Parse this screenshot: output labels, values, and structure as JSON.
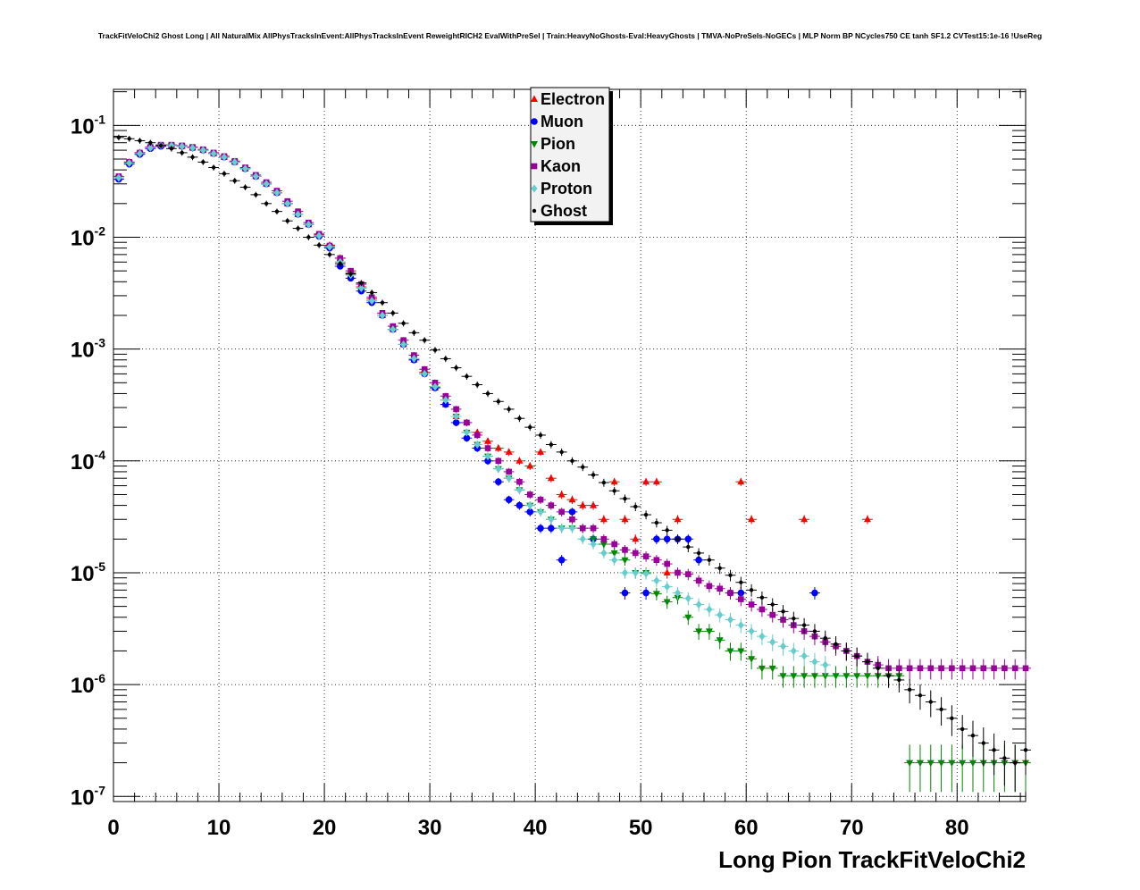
{
  "chart_data": {
    "type": "scatter",
    "title": "TrackFitVeloChi2 Ghost Long | All NaturalMix AllPhysTracksInEvent:AllPhysTracksInEvent ReweightRICH2 EvalWithPreSel | Train:HeavyNoGhosts-Eval:HeavyGhosts | TMVA-NoPreSels-NoGECs | MLP Norm BP NCycles750 CE tanh SF1.2 CVTest15:1e-16 !UseReg",
    "xlabel": "Long Pion TrackFitVeloChi2",
    "ylabel": "",
    "xlim": [
      0,
      86.5
    ],
    "ylim": [
      9e-08,
      0.21
    ],
    "yscale": "log",
    "grid": true,
    "legend_position": "top-center",
    "x_ticks": [
      0,
      10,
      20,
      30,
      40,
      50,
      60,
      70,
      80
    ],
    "x_tick_labels": [
      "0",
      "10",
      "20",
      "30",
      "40",
      "50",
      "60",
      "70",
      "80"
    ],
    "y_ticks": [
      1e-07,
      1e-06,
      1e-05,
      0.0001,
      0.001,
      0.01,
      0.1
    ],
    "y_tick_labels": [
      {
        "base": "10",
        "exp": "-7"
      },
      {
        "base": "10",
        "exp": "-6"
      },
      {
        "base": "10",
        "exp": "-5"
      },
      {
        "base": "10",
        "exp": "-4"
      },
      {
        "base": "10",
        "exp": "-3"
      },
      {
        "base": "10",
        "exp": "-2"
      },
      {
        "base": "10",
        "exp": "-1"
      }
    ],
    "bin_width": 1,
    "series": [
      {
        "name": "Electron",
        "color": "#ff0000",
        "marker": "triangle-up",
        "values": [
          0.034,
          0.047,
          0.057,
          0.063,
          0.066,
          0.066,
          0.065,
          0.063,
          0.06,
          0.056,
          0.052,
          0.047,
          0.041,
          0.035,
          0.03,
          0.025,
          0.02,
          0.016,
          0.013,
          0.0105,
          0.0085,
          0.0065,
          0.0048,
          0.0036,
          0.0028,
          0.002,
          0.0015,
          0.0011,
          0.0008,
          0.00062,
          0.00045,
          0.00032,
          0.00025,
          0.00022,
          0.00018,
          0.00015,
          0.00013,
          0.00012,
          0.0001,
          9e-05,
          0.00012,
          7e-05,
          5e-05,
          4.5e-05,
          4e-05,
          4e-05,
          3e-05,
          6.5e-05,
          3e-05,
          2e-05,
          6.5e-05,
          6.5e-05,
          1e-05,
          3e-05,
          null,
          null,
          null,
          null,
          null,
          6.5e-05,
          3e-05,
          null,
          null,
          null,
          null,
          3e-05,
          null,
          null,
          null,
          null,
          null,
          3e-05
        ]
      },
      {
        "name": "Muon",
        "color": "#0000ff",
        "marker": "circle",
        "values": [
          0.033,
          0.045,
          0.055,
          0.062,
          0.065,
          0.066,
          0.065,
          0.063,
          0.06,
          0.056,
          0.052,
          0.047,
          0.041,
          0.035,
          0.03,
          0.025,
          0.02,
          0.016,
          0.013,
          0.0102,
          0.008,
          0.0055,
          0.0043,
          0.0033,
          0.0026,
          0.002,
          0.0015,
          0.0011,
          0.0008,
          0.0006,
          0.00045,
          0.00032,
          0.00022,
          0.00016,
          0.00013,
          0.0001,
          6.5e-05,
          4.5e-05,
          4e-05,
          3.5e-05,
          2.5e-05,
          2.5e-05,
          1.3e-05,
          3.5e-05,
          null,
          2e-05,
          null,
          null,
          6.6e-06,
          null,
          6.6e-06,
          2e-05,
          2e-05,
          2e-05,
          2e-05,
          1.3e-05,
          null,
          null,
          6.6e-06,
          6.6e-06,
          null,
          null,
          null,
          null,
          null,
          null,
          6.6e-06
        ]
      },
      {
        "name": "Pion",
        "color": "#008800",
        "marker": "triangle-down",
        "values": [
          0.034,
          0.046,
          0.056,
          0.063,
          0.066,
          0.066,
          0.065,
          0.063,
          0.06,
          0.056,
          0.052,
          0.047,
          0.041,
          0.035,
          0.03,
          0.025,
          0.02,
          0.016,
          0.013,
          0.0103,
          0.0082,
          0.006,
          0.0046,
          0.0035,
          0.0027,
          0.002,
          0.0015,
          0.0011,
          0.00082,
          0.0006,
          0.00046,
          0.00035,
          0.00025,
          0.00018,
          0.00014,
          0.00011,
          8.5e-05,
          7e-05,
          5.5e-05,
          4e-05,
          3.5e-05,
          3e-05,
          2.5e-05,
          2.5e-05,
          2.5e-05,
          2e-05,
          1.8e-05,
          1.5e-05,
          1.3e-05,
          1e-05,
          1e-05,
          6.5e-06,
          5.5e-06,
          6e-06,
          4e-06,
          3e-06,
          3e-06,
          2.5e-06,
          2e-06,
          2e-06,
          1.7e-06,
          1.4e-06,
          1.4e-06,
          1.2e-06,
          1.2e-06,
          1.2e-06,
          1.2e-06,
          1.2e-06,
          1.2e-06,
          1.2e-06,
          1.2e-06,
          1.2e-06,
          1.2e-06,
          1.2e-06,
          1.2e-06,
          2e-07,
          2e-07,
          2e-07,
          2e-07,
          2e-07,
          2e-07,
          2e-07,
          2e-07,
          2e-07,
          2e-07,
          2e-07,
          2e-07
        ]
      },
      {
        "name": "Kaon",
        "color": "#990099",
        "marker": "square",
        "values": [
          0.035,
          0.047,
          0.057,
          0.064,
          0.067,
          0.067,
          0.066,
          0.064,
          0.061,
          0.057,
          0.053,
          0.048,
          0.042,
          0.036,
          0.031,
          0.026,
          0.021,
          0.017,
          0.0135,
          0.0107,
          0.0084,
          0.0065,
          0.005,
          0.0038,
          0.0029,
          0.0021,
          0.0016,
          0.0012,
          0.00088,
          0.00066,
          0.0005,
          0.00038,
          0.00029,
          0.00022,
          0.00017,
          0.00013,
          0.0001,
          8e-05,
          6.5e-05,
          5e-05,
          4.5e-05,
          4e-05,
          3.5e-05,
          3e-05,
          2.5e-05,
          2.5e-05,
          2e-05,
          1.8e-05,
          1.6e-05,
          1.5e-05,
          1.4e-05,
          1.3e-05,
          1.2e-05,
          1e-05,
          9.7e-06,
          8.5e-06,
          7.6e-06,
          7.2e-06,
          6.6e-06,
          5.8e-06,
          5.2e-06,
          4.7e-06,
          4.2e-06,
          3.8e-06,
          3.4e-06,
          3e-06,
          2.7e-06,
          2.4e-06,
          2.2e-06,
          2e-06,
          1.8e-06,
          1.6e-06,
          1.5e-06,
          1.4e-06,
          1.4e-06,
          1.4e-06,
          1.4e-06,
          1.4e-06,
          1.4e-06,
          1.4e-06,
          1.4e-06,
          1.4e-06,
          1.4e-06,
          1.4e-06,
          1.4e-06,
          1.4e-06,
          1.4e-06
        ]
      },
      {
        "name": "Proton",
        "color": "#66cccc",
        "marker": "diamond",
        "values": [
          0.034,
          0.046,
          0.056,
          0.063,
          0.066,
          0.066,
          0.065,
          0.063,
          0.06,
          0.056,
          0.052,
          0.047,
          0.041,
          0.035,
          0.03,
          0.025,
          0.02,
          0.016,
          0.013,
          0.0103,
          0.0082,
          0.006,
          0.0046,
          0.0035,
          0.0027,
          0.002,
          0.0015,
          0.0011,
          0.00082,
          0.0006,
          0.00046,
          0.00035,
          0.00025,
          0.00018,
          0.00014,
          0.00011,
          8.5e-05,
          7e-05,
          5.5e-05,
          4e-05,
          3.5e-05,
          3e-05,
          2.5e-05,
          2.5e-05,
          2e-05,
          1.8e-05,
          1.5e-05,
          1.3e-05,
          1e-05,
          1e-05,
          9.8e-06,
          8.5e-06,
          7.5e-06,
          6.6e-06,
          5.9e-06,
          5.2e-06,
          4.7e-06,
          4.2e-06,
          3.8e-06,
          3.4e-06,
          3e-06,
          2.7e-06,
          2.4e-06,
          2.2e-06,
          2e-06,
          1.8e-06,
          1.6e-06,
          1.5e-06
        ]
      },
      {
        "name": "Ghost",
        "color": "#000000",
        "marker": "star",
        "values": [
          0.078,
          0.076,
          0.073,
          0.07,
          0.066,
          0.062,
          0.057,
          0.052,
          0.047,
          0.042,
          0.037,
          0.032,
          0.028,
          0.024,
          0.02,
          0.017,
          0.014,
          0.012,
          0.01,
          0.0085,
          0.007,
          0.0058,
          0.0047,
          0.0039,
          0.0032,
          0.0026,
          0.0021,
          0.0017,
          0.0014,
          0.0012,
          0.00098,
          0.00082,
          0.00068,
          0.00057,
          0.00048,
          0.0004,
          0.00034,
          0.00029,
          0.00024,
          0.0002,
          0.00017,
          0.00014,
          0.00012,
          0.0001,
          8.8e-05,
          7.5e-05,
          6.4e-05,
          5.4e-05,
          4.6e-05,
          3.9e-05,
          3.3e-05,
          2.8e-05,
          2.4e-05,
          2e-05,
          1.7e-05,
          1.5e-05,
          1.3e-05,
          1.1e-05,
          9.5e-06,
          8.2e-06,
          7e-06,
          6e-06,
          5.2e-06,
          4.5e-06,
          3.9e-06,
          3.4e-06,
          3e-06,
          2.6e-06,
          2.3e-06,
          2e-06,
          1.8e-06,
          1.6e-06,
          1.4e-06,
          1.2e-06,
          1.1e-06,
          9e-07,
          8e-07,
          7e-07,
          6e-07,
          5e-07,
          4e-07,
          3.5e-07,
          3e-07,
          2.6e-07,
          2.2e-07,
          2e-07,
          2.6e-07
        ]
      }
    ]
  }
}
